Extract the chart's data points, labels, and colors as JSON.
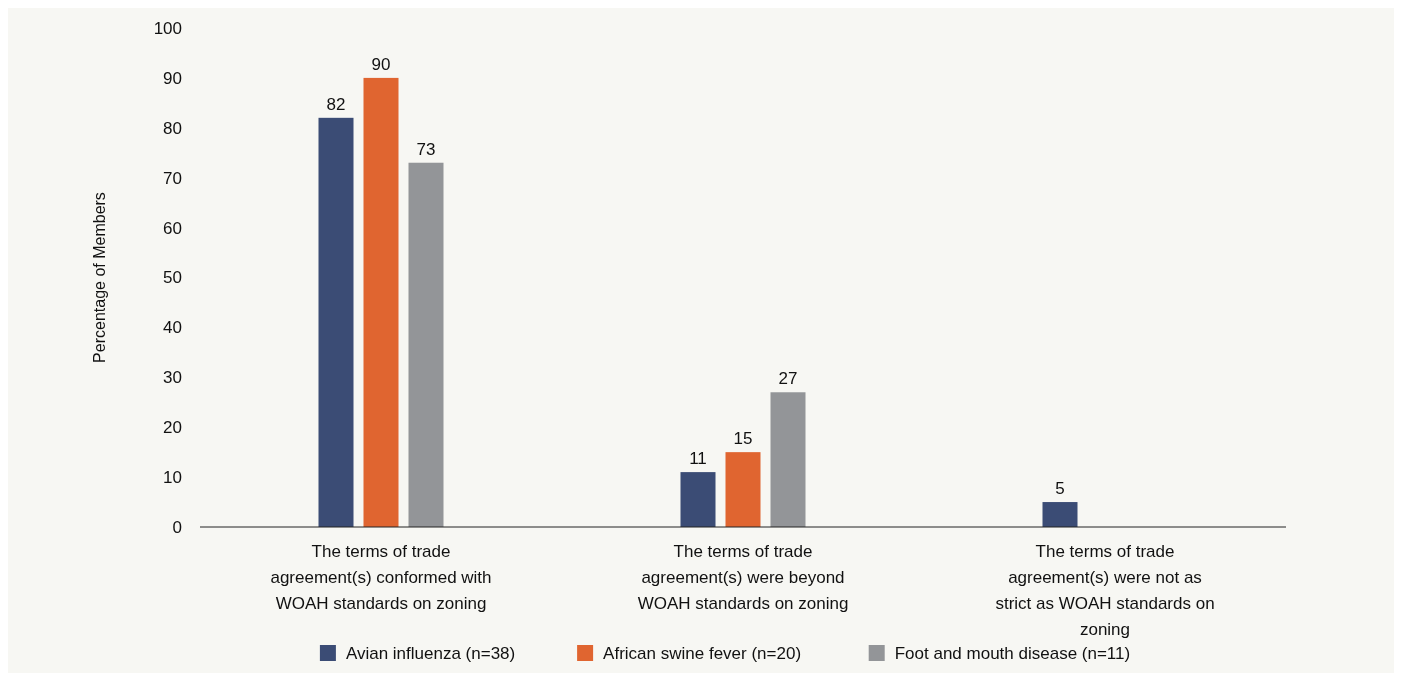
{
  "chart_data": {
    "type": "bar",
    "ylabel": "Percentage of Members",
    "categories": [
      "The terms of trade agreement(s) conformed with WOAH standards on zoning",
      "The terms of trade agreement(s) were beyond WOAH standards on zoning",
      "The terms of trade agreement(s) were not as strict as WOAH standards on zoning"
    ],
    "series": [
      {
        "name": "Avian influenza (n=38)",
        "color": "#3b4c75",
        "values": [
          82,
          11,
          5
        ]
      },
      {
        "name": "African swine fever (n=20)",
        "color": "#e06530",
        "values": [
          90,
          15,
          null
        ]
      },
      {
        "name": "Foot and mouth disease (n=11)",
        "color": "#939598",
        "values": [
          73,
          27,
          null
        ]
      }
    ],
    "ylim": [
      0,
      100
    ],
    "yticks": [
      0,
      10,
      20,
      30,
      40,
      50,
      60,
      70,
      80,
      90,
      100
    ],
    "data_labels": true,
    "legend": "bottom",
    "grid": false
  }
}
